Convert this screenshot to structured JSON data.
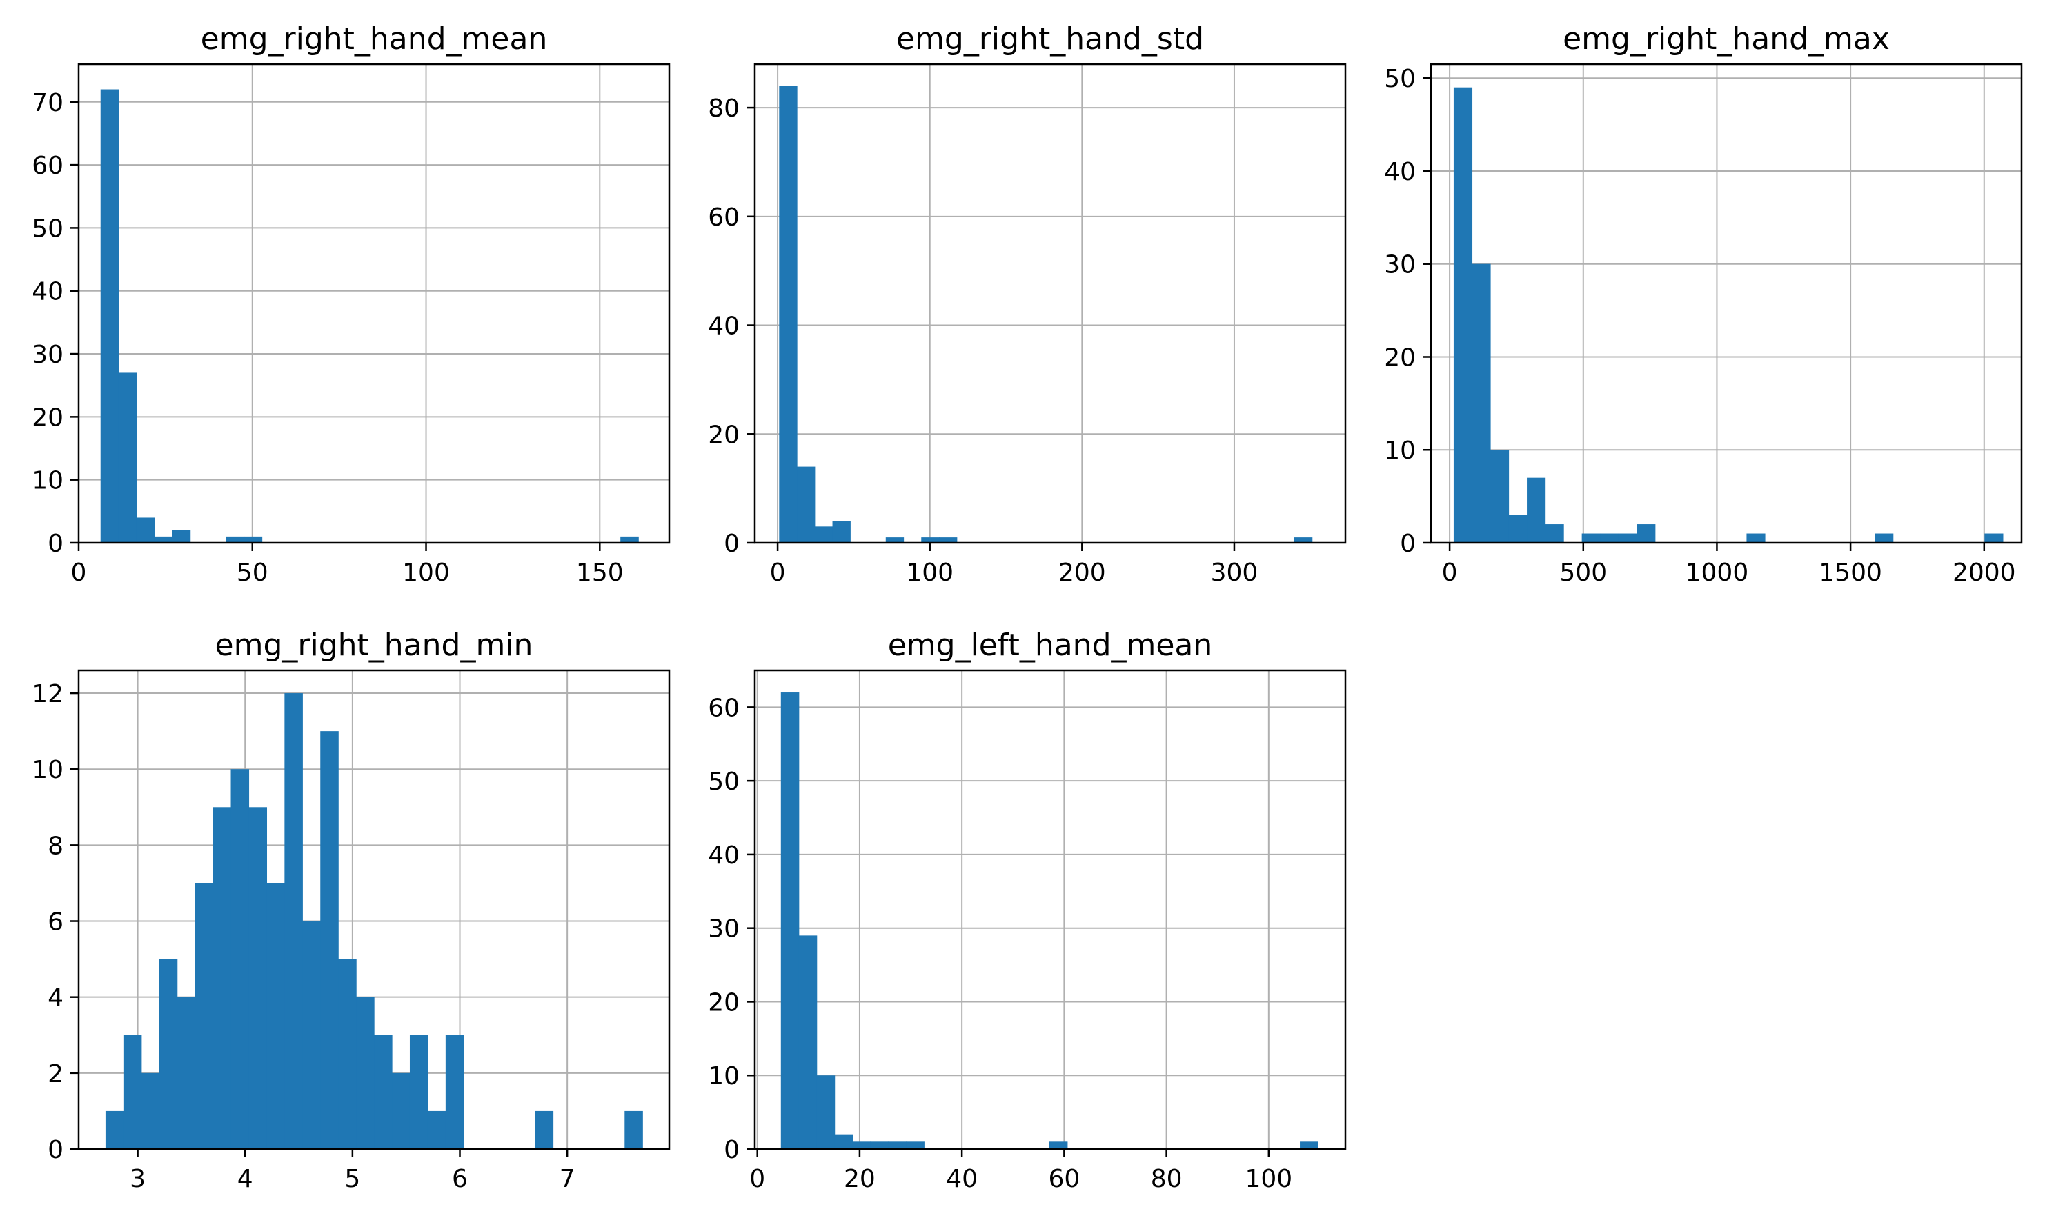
{
  "figure": {
    "background": "#ffffff",
    "bar_color": "#1f77b4",
    "grid_color": "#b0b0b0"
  },
  "chart_data": [
    {
      "type": "bar",
      "title": "emg_right_hand_mean",
      "xlabel": "",
      "ylabel": "",
      "xlim": [
        0,
        170
      ],
      "ylim": [
        0,
        76
      ],
      "xticks": [
        0,
        50,
        100,
        150
      ],
      "yticks": [
        0,
        10,
        20,
        30,
        40,
        50,
        60,
        70
      ],
      "grid": true,
      "legend": "none",
      "bins": {
        "start": 6.3,
        "width": 5.16
      },
      "values": [
        72,
        27,
        4,
        1,
        2,
        0,
        0,
        1,
        1,
        0,
        0,
        0,
        0,
        0,
        0,
        0,
        0,
        0,
        0,
        0,
        0,
        0,
        0,
        0,
        0,
        0,
        0,
        0,
        0,
        1
      ]
    },
    {
      "type": "bar",
      "title": "emg_right_hand_std",
      "xlabel": "",
      "ylabel": "",
      "xlim": [
        -15,
        373
      ],
      "ylim": [
        0,
        88
      ],
      "xticks": [
        0,
        100,
        200,
        300
      ],
      "yticks": [
        0,
        20,
        40,
        60,
        80
      ],
      "grid": true,
      "legend": "none",
      "bins": {
        "start": 1.0,
        "width": 11.67
      },
      "values": [
        84,
        14,
        3,
        4,
        0,
        0,
        1,
        0,
        1,
        1,
        0,
        0,
        0,
        0,
        0,
        0,
        0,
        0,
        0,
        0,
        0,
        0,
        0,
        0,
        0,
        0,
        0,
        0,
        0,
        1
      ]
    },
    {
      "type": "bar",
      "title": "emg_right_hand_max",
      "xlabel": "",
      "ylabel": "",
      "xlim": [
        -70,
        2140
      ],
      "ylim": [
        0,
        51.5
      ],
      "xticks": [
        0,
        500,
        1000,
        1500,
        2000
      ],
      "yticks": [
        0,
        10,
        20,
        30,
        40,
        50
      ],
      "grid": true,
      "legend": "none",
      "bins": {
        "start": 15,
        "width": 68.5
      },
      "values": [
        49,
        30,
        10,
        3,
        7,
        2,
        0,
        1,
        1,
        1,
        2,
        0,
        0,
        0,
        0,
        0,
        1,
        0,
        0,
        0,
        0,
        0,
        0,
        1,
        0,
        0,
        0,
        0,
        0,
        1
      ]
    },
    {
      "type": "bar",
      "title": "emg_right_hand_min",
      "xlabel": "",
      "ylabel": "",
      "xlim": [
        2.45,
        7.95
      ],
      "ylim": [
        0,
        12.6
      ],
      "xticks": [
        3,
        4,
        5,
        6,
        7
      ],
      "yticks": [
        0,
        2,
        4,
        6,
        8,
        10,
        12
      ],
      "grid": true,
      "legend": "none",
      "bins": {
        "start": 2.7,
        "width": 0.1667
      },
      "values": [
        1,
        3,
        2,
        5,
        4,
        7,
        9,
        10,
        9,
        7,
        12,
        6,
        11,
        5,
        4,
        3,
        2,
        3,
        1,
        3,
        0,
        0,
        0,
        0,
        1,
        0,
        0,
        0,
        0,
        1
      ]
    },
    {
      "type": "bar",
      "title": "emg_left_hand_mean",
      "xlabel": "",
      "ylabel": "",
      "xlim": [
        -0.5,
        115
      ],
      "ylim": [
        0,
        65
      ],
      "xticks": [
        0,
        20,
        40,
        60,
        80,
        100
      ],
      "yticks": [
        0,
        10,
        20,
        30,
        40,
        50,
        60
      ],
      "grid": true,
      "legend": "none",
      "bins": {
        "start": 4.6,
        "width": 3.5
      },
      "values": [
        62,
        29,
        10,
        2,
        1,
        1,
        1,
        1,
        0,
        0,
        0,
        0,
        0,
        0,
        0,
        1,
        0,
        0,
        0,
        0,
        0,
        0,
        0,
        0,
        0,
        0,
        0,
        0,
        0,
        1
      ]
    }
  ]
}
